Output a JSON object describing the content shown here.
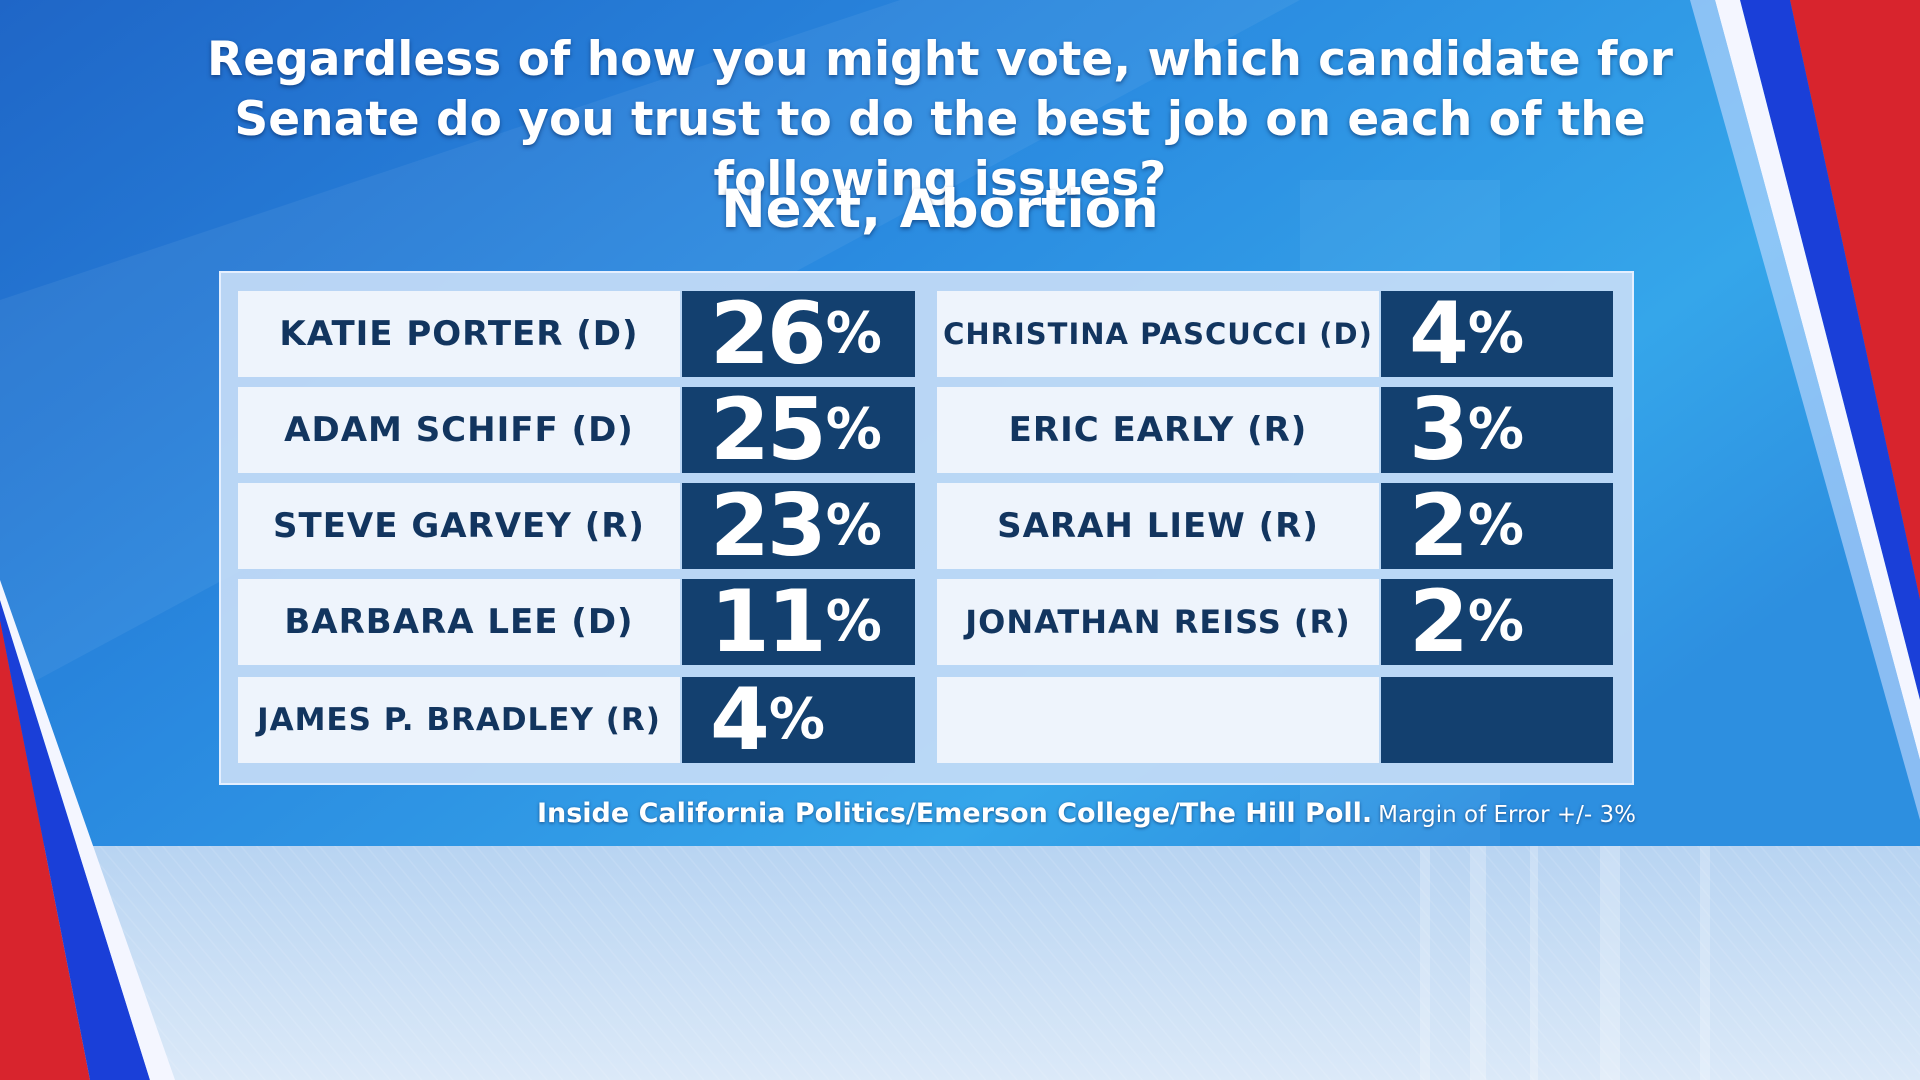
{
  "title": "Regardless of how you might vote, which candidate for Senate do you trust to do the best job on each of the following issues?",
  "subtitle": "Next, Abortion",
  "source": {
    "name": "Inside California Politics/Emerson College/The Hill Poll.",
    "margin": "Margin of Error +/- 3%"
  },
  "colors": {
    "name_cell_bg": "#eef4fc",
    "value_cell_bg": "#13406f",
    "name_text": "#12355f",
    "background_blue": "#1e6fd0",
    "accent_red": "#d8242d"
  },
  "chart_data": {
    "type": "table",
    "title": "Regardless of how you might vote, which candidate for Senate do you trust to do the best job on each of the following issues?",
    "subtitle": "Next, Abortion",
    "unit": "%",
    "candidates": [
      {
        "name": "KATIE PORTER (D)",
        "value": 26,
        "display": "26"
      },
      {
        "name": "ADAM SCHIFF (D)",
        "value": 25,
        "display": "25"
      },
      {
        "name": "STEVE GARVEY (R)",
        "value": 23,
        "display": "23"
      },
      {
        "name": "BARBARA LEE (D)",
        "value": 11,
        "display": "11"
      },
      {
        "name": "JAMES P. BRADLEY (R)",
        "value": 4,
        "display": "4"
      },
      {
        "name": "CHRISTINA PASCUCCI (D)",
        "value": 4,
        "display": "4"
      },
      {
        "name": "ERIC EARLY (R)",
        "value": 3,
        "display": "3"
      },
      {
        "name": "SARAH LIEW (R)",
        "value": 2,
        "display": "2"
      },
      {
        "name": "JONATHAN REISS (R)",
        "value": 2,
        "display": "2"
      }
    ],
    "empty_slots": 1
  }
}
